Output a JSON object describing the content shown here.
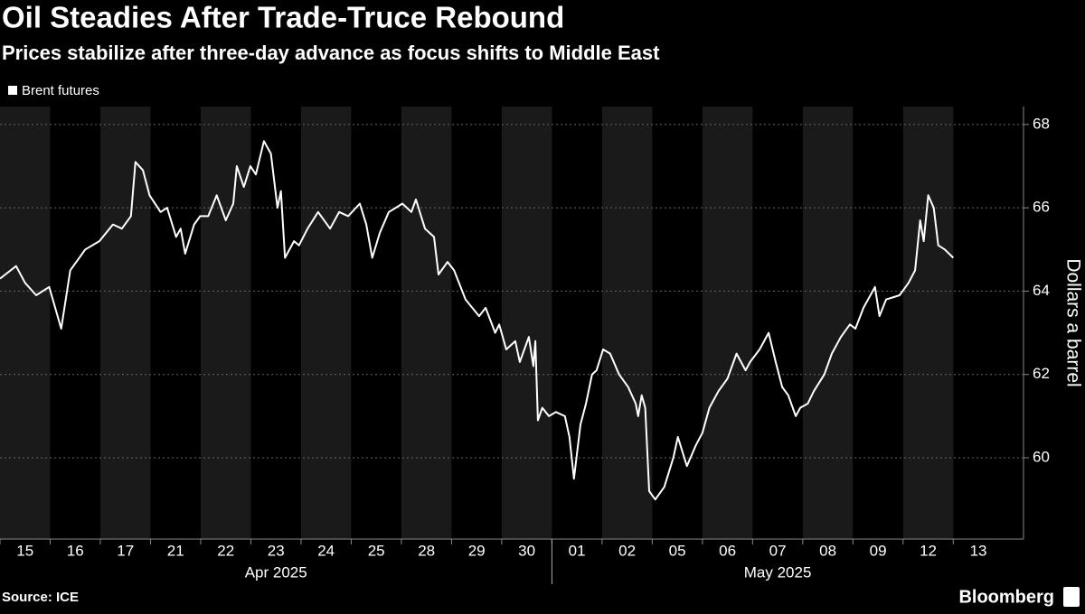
{
  "chart_data": {
    "type": "line",
    "title": "Oil Steadies After Trade-Truce Rebound",
    "subtitle": "Prices stabilize after three-day advance as focus shifts to Middle East",
    "y_label": "Dollars a barrel",
    "source": "Source: ICE",
    "credit": "Bloomberg",
    "xlim": [
      0,
      20.4
    ],
    "xticks": [
      {
        "value": 0.5,
        "label": "15"
      },
      {
        "value": 1.5,
        "label": "16"
      },
      {
        "value": 2.5,
        "label": "17"
      },
      {
        "value": 3.5,
        "label": "21"
      },
      {
        "value": 4.5,
        "label": "22"
      },
      {
        "value": 5.5,
        "label": "23"
      },
      {
        "value": 6.5,
        "label": "24"
      },
      {
        "value": 7.5,
        "label": "25"
      },
      {
        "value": 8.5,
        "label": "28"
      },
      {
        "value": 9.5,
        "label": "29"
      },
      {
        "value": 10.5,
        "label": "30"
      },
      {
        "value": 11.5,
        "label": "01"
      },
      {
        "value": 12.5,
        "label": "02"
      },
      {
        "value": 13.5,
        "label": "05"
      },
      {
        "value": 14.5,
        "label": "06"
      },
      {
        "value": 15.5,
        "label": "07"
      },
      {
        "value": 16.5,
        "label": "08"
      },
      {
        "value": 17.5,
        "label": "09"
      },
      {
        "value": 18.5,
        "label": "12"
      },
      {
        "value": 19.5,
        "label": "13"
      }
    ],
    "x_groups": [
      {
        "label": "Apr 2025",
        "xlim": [
          0,
          11
        ]
      },
      {
        "label": "May 2025",
        "xlim": [
          11,
          20
        ]
      }
    ],
    "ylim": [
      58.05,
      68.43
    ],
    "yticks": [
      60,
      62,
      64,
      66,
      68
    ],
    "grid": true,
    "y_axis_side": "right",
    "x": [
      0,
      0.32,
      0.5,
      0.72,
      0.98,
      1.22,
      1.4,
      1.7,
      1.98,
      2.25,
      2.43,
      2.61,
      2.7,
      2.85,
      2.98,
      3.2,
      3.33,
      3.51,
      3.6,
      3.69,
      3.87,
      3.99,
      4.15,
      4.32,
      4.5,
      4.65,
      4.72,
      4.86,
      4.99,
      5.1,
      5.26,
      5.4,
      5.53,
      5.6,
      5.68,
      5.86,
      5.96,
      6.13,
      6.34,
      6.58,
      6.76,
      6.94,
      7.17,
      7.3,
      7.42,
      7.57,
      7.75,
      7.89,
      8.02,
      8.2,
      8.29,
      8.47,
      8.65,
      8.74,
      8.92,
      9.05,
      9.28,
      9.55,
      9.68,
      9.87,
      9.95,
      10.09,
      10.27,
      10.36,
      10.54,
      10.63,
      10.67,
      10.72,
      10.81,
      10.94,
      11.08,
      11.26,
      11.35,
      11.44,
      11.57,
      11.68,
      11.8,
      11.89,
      12.02,
      12.16,
      12.34,
      12.52,
      12.67,
      12.72,
      12.79,
      12.86,
      12.94,
      13.06,
      13.24,
      13.42,
      13.51,
      13.69,
      13.87,
      14.0,
      14.14,
      14.32,
      14.5,
      14.68,
      14.86,
      14.95,
      15.14,
      15.32,
      15.46,
      15.59,
      15.71,
      15.86,
      15.95,
      16.1,
      16.22,
      16.43,
      16.58,
      16.76,
      16.94,
      17.05,
      17.21,
      17.44,
      17.53,
      17.66,
      17.93,
      18.11,
      18.24,
      18.34,
      18.41,
      18.5,
      18.61,
      18.7,
      18.83,
      19.0
    ],
    "series": [
      {
        "name": "Brent futures",
        "color": "#ffffff",
        "values": [
          64.3,
          64.6,
          64.2,
          63.9,
          64.1,
          63.1,
          64.5,
          65.0,
          65.2,
          65.6,
          65.5,
          65.8,
          67.1,
          66.9,
          66.3,
          65.9,
          66.0,
          65.3,
          65.5,
          64.9,
          65.6,
          65.8,
          65.8,
          66.3,
          65.7,
          66.1,
          67.0,
          66.5,
          67.0,
          66.8,
          67.6,
          67.3,
          66.0,
          66.4,
          64.8,
          65.2,
          65.1,
          65.5,
          65.9,
          65.5,
          65.9,
          65.8,
          66.1,
          65.6,
          64.8,
          65.4,
          65.9,
          66.0,
          66.1,
          65.9,
          66.2,
          65.5,
          65.3,
          64.4,
          64.7,
          64.5,
          63.8,
          63.4,
          63.6,
          63.0,
          63.2,
          62.6,
          62.8,
          62.3,
          62.9,
          62.2,
          62.8,
          60.9,
          61.2,
          61.0,
          61.1,
          61.0,
          60.5,
          59.5,
          60.8,
          61.3,
          62.0,
          62.1,
          62.6,
          62.5,
          62.0,
          61.7,
          61.3,
          61.0,
          61.5,
          61.2,
          59.2,
          59.0,
          59.3,
          60.0,
          60.5,
          59.8,
          60.3,
          60.6,
          61.2,
          61.6,
          61.9,
          62.5,
          62.1,
          62.3,
          62.6,
          63.0,
          62.3,
          61.7,
          61.5,
          61.0,
          61.2,
          61.3,
          61.6,
          62.0,
          62.5,
          62.9,
          63.2,
          63.1,
          63.6,
          64.1,
          63.4,
          63.8,
          63.9,
          64.2,
          64.5,
          65.7,
          65.2,
          66.3,
          66.0,
          65.1,
          65.0,
          64.8
        ]
      }
    ]
  }
}
